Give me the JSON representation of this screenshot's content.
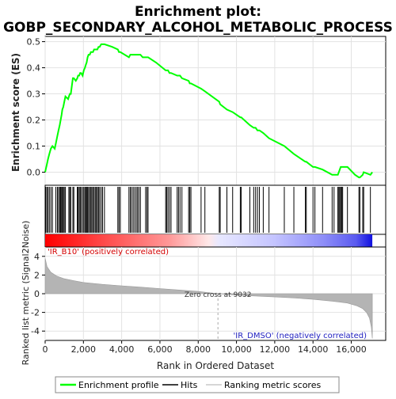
{
  "chart_data": {
    "type": "line",
    "title_line1": "Enrichment plot:",
    "title_line2": "GOBP_SECONDARY_ALCOHOL_METABOLIC_PROCESS",
    "es_ylabel": "Enrichment score (ES)",
    "metric_ylabel": "Ranked list metric (Signal2Noise)",
    "xlabel": "Rank in Ordered Dataset",
    "es_yticks": [
      "0.0",
      "0.1",
      "0.2",
      "0.3",
      "0.4",
      "0.5"
    ],
    "metric_yticks": [
      "4",
      "2",
      "0",
      "-2",
      "-4"
    ],
    "xticks": [
      "0",
      "2,000",
      "4,000",
      "6,000",
      "8,000",
      "10,000",
      "12,000",
      "14,000",
      "16,000"
    ],
    "xlim": [
      0,
      17800
    ],
    "es_ylim": [
      -0.05,
      0.52
    ],
    "metric_ylim": [
      -5,
      5
    ],
    "total_ranks": 17100,
    "zero_cross_label": "Zero cross at 9032",
    "zero_cross": 9032,
    "pos_label": "'IR_B10' (positively correlated)",
    "neg_label": "'IR_DMSO' (negatively correlated)",
    "legend": {
      "profile": "Enrichment profile",
      "hits": "Hits",
      "metric": "Ranking metric scores"
    },
    "profile_color": "#00ff00",
    "hits": [
      30,
      90,
      150,
      220,
      300,
      380,
      560,
      640,
      700,
      760,
      810,
      860,
      900,
      950,
      1000,
      1060,
      1240,
      1290,
      1340,
      1450,
      1500,
      1680,
      1720,
      1780,
      1830,
      1880,
      1960,
      2020,
      2080,
      2120,
      2170,
      2220,
      2270,
      2330,
      2390,
      2440,
      2500,
      2560,
      2620,
      2680,
      2730,
      2790,
      2850,
      2930,
      3000,
      3100,
      3800,
      3860,
      3930,
      4380,
      4450,
      4520,
      4600,
      4680,
      4760,
      4830,
      4900,
      4980,
      5250,
      5320,
      5380,
      6300,
      6350,
      6420,
      6500,
      6580,
      6900,
      6970,
      7050,
      7150,
      7500,
      7560,
      7620,
      8150,
      8350,
      9100,
      9150,
      9500,
      9800,
      10200,
      10250,
      10700,
      10900,
      11000,
      11100,
      11200,
      11400,
      11700,
      12500,
      13000,
      13600,
      13650,
      14000,
      14100,
      14500,
      15000,
      15100,
      15300,
      15350,
      15400,
      15450,
      15500,
      15550,
      15800,
      16400,
      16450,
      16600,
      16650,
      17000
    ],
    "es_curve": [
      [
        0,
        0.0
      ],
      [
        30,
        0.01
      ],
      [
        90,
        0.03
      ],
      [
        150,
        0.05
      ],
      [
        220,
        0.07
      ],
      [
        300,
        0.09
      ],
      [
        380,
        0.1
      ],
      [
        500,
        0.09
      ],
      [
        560,
        0.11
      ],
      [
        640,
        0.14
      ],
      [
        700,
        0.16
      ],
      [
        760,
        0.18
      ],
      [
        810,
        0.2
      ],
      [
        860,
        0.22
      ],
      [
        900,
        0.24
      ],
      [
        950,
        0.25
      ],
      [
        1000,
        0.27
      ],
      [
        1060,
        0.29
      ],
      [
        1200,
        0.28
      ],
      [
        1240,
        0.29
      ],
      [
        1290,
        0.3
      ],
      [
        1340,
        0.3
      ],
      [
        1450,
        0.36
      ],
      [
        1500,
        0.36
      ],
      [
        1600,
        0.35
      ],
      [
        1680,
        0.36
      ],
      [
        1720,
        0.37
      ],
      [
        1780,
        0.37
      ],
      [
        1830,
        0.38
      ],
      [
        1880,
        0.38
      ],
      [
        1960,
        0.37
      ],
      [
        2020,
        0.39
      ],
      [
        2080,
        0.4
      ],
      [
        2120,
        0.41
      ],
      [
        2170,
        0.42
      ],
      [
        2220,
        0.44
      ],
      [
        2270,
        0.45
      ],
      [
        2330,
        0.45
      ],
      [
        2390,
        0.46
      ],
      [
        2440,
        0.46
      ],
      [
        2500,
        0.46
      ],
      [
        2560,
        0.47
      ],
      [
        2620,
        0.47
      ],
      [
        2680,
        0.47
      ],
      [
        2730,
        0.47
      ],
      [
        2790,
        0.48
      ],
      [
        2850,
        0.48
      ],
      [
        2930,
        0.49
      ],
      [
        3000,
        0.49
      ],
      [
        3100,
        0.49
      ],
      [
        3500,
        0.48
      ],
      [
        3800,
        0.47
      ],
      [
        3860,
        0.46
      ],
      [
        3930,
        0.46
      ],
      [
        4380,
        0.44
      ],
      [
        4450,
        0.45
      ],
      [
        4520,
        0.45
      ],
      [
        4600,
        0.45
      ],
      [
        4680,
        0.45
      ],
      [
        4760,
        0.45
      ],
      [
        4830,
        0.45
      ],
      [
        4900,
        0.45
      ],
      [
        4980,
        0.45
      ],
      [
        5100,
        0.44
      ],
      [
        5250,
        0.44
      ],
      [
        5320,
        0.44
      ],
      [
        5380,
        0.44
      ],
      [
        5800,
        0.42
      ],
      [
        6300,
        0.39
      ],
      [
        6350,
        0.39
      ],
      [
        6420,
        0.39
      ],
      [
        6500,
        0.38
      ],
      [
        6580,
        0.38
      ],
      [
        6900,
        0.37
      ],
      [
        6970,
        0.37
      ],
      [
        7050,
        0.37
      ],
      [
        7150,
        0.36
      ],
      [
        7500,
        0.35
      ],
      [
        7560,
        0.34
      ],
      [
        7620,
        0.34
      ],
      [
        8150,
        0.32
      ],
      [
        8350,
        0.31
      ],
      [
        9100,
        0.27
      ],
      [
        9150,
        0.26
      ],
      [
        9500,
        0.24
      ],
      [
        9800,
        0.23
      ],
      [
        10200,
        0.21
      ],
      [
        10250,
        0.21
      ],
      [
        10700,
        0.18
      ],
      [
        10900,
        0.17
      ],
      [
        11000,
        0.17
      ],
      [
        11100,
        0.16
      ],
      [
        11200,
        0.16
      ],
      [
        11400,
        0.15
      ],
      [
        11700,
        0.13
      ],
      [
        12500,
        0.1
      ],
      [
        13000,
        0.07
      ],
      [
        13600,
        0.04
      ],
      [
        13650,
        0.04
      ],
      [
        14000,
        0.02
      ],
      [
        14100,
        0.02
      ],
      [
        14500,
        0.01
      ],
      [
        15000,
        -0.01
      ],
      [
        15100,
        -0.01
      ],
      [
        15300,
        -0.01
      ],
      [
        15350,
        0.0
      ],
      [
        15400,
        0.01
      ],
      [
        15450,
        0.02
      ],
      [
        15500,
        0.02
      ],
      [
        15550,
        0.02
      ],
      [
        15800,
        0.02
      ],
      [
        16200,
        -0.01
      ],
      [
        16400,
        -0.02
      ],
      [
        16450,
        -0.02
      ],
      [
        16600,
        -0.01
      ],
      [
        16650,
        0.0
      ],
      [
        17000,
        -0.01
      ],
      [
        17100,
        0.0
      ]
    ],
    "metric_curve": [
      [
        0,
        3.8
      ],
      [
        100,
        2.9
      ],
      [
        300,
        2.3
      ],
      [
        600,
        1.9
      ],
      [
        1000,
        1.6
      ],
      [
        1500,
        1.4
      ],
      [
        2000,
        1.2
      ],
      [
        3000,
        1.0
      ],
      [
        4000,
        0.85
      ],
      [
        5000,
        0.7
      ],
      [
        6000,
        0.55
      ],
      [
        7000,
        0.4
      ],
      [
        8000,
        0.25
      ],
      [
        9032,
        0.0
      ],
      [
        10000,
        -0.15
      ],
      [
        11000,
        -0.25
      ],
      [
        12000,
        -0.35
      ],
      [
        13000,
        -0.45
      ],
      [
        14000,
        -0.6
      ],
      [
        15000,
        -0.8
      ],
      [
        15800,
        -1.0
      ],
      [
        16300,
        -1.3
      ],
      [
        16600,
        -1.6
      ],
      [
        16800,
        -2.0
      ],
      [
        16950,
        -2.6
      ],
      [
        17050,
        -3.6
      ],
      [
        17100,
        -4.8
      ]
    ]
  }
}
